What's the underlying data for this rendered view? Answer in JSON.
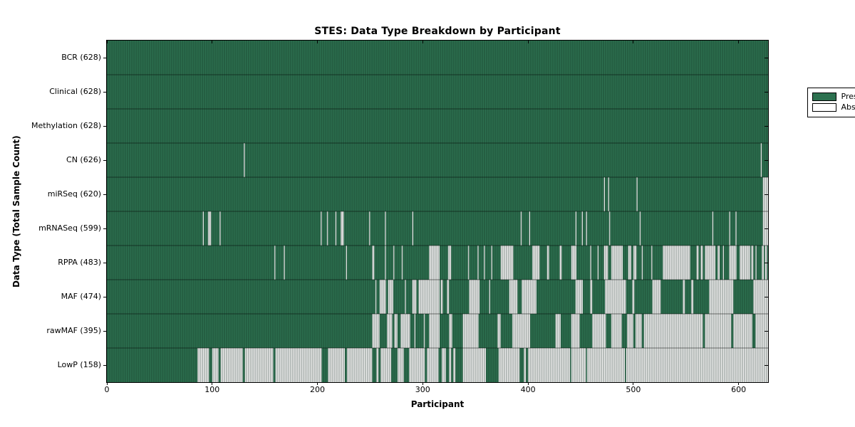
{
  "title": "STES: Data Type Breakdown by Participant",
  "axes": {
    "x_label": "Participant",
    "y_label": "Data Type (Total Sample Count)",
    "x_ticks": [
      0,
      100,
      200,
      300,
      400,
      500,
      600
    ],
    "x_min": 0,
    "x_max": 628
  },
  "legend": {
    "present_label": "Present",
    "absent_label": "Absent"
  },
  "colors": {
    "present": "#2d7150",
    "absent": "#ececec",
    "stripe": "#0a2216",
    "legend_present": "#2d7150",
    "legend_absent": "#ffffff",
    "border": "#000000"
  },
  "chart_data": {
    "type": "heatmap",
    "title": "STES: Data Type Breakdown by Participant",
    "xlabel": "Participant",
    "ylabel": "Data Type (Total Sample Count)",
    "xlim": [
      0,
      628
    ],
    "x_ticks": [
      0,
      100,
      200,
      300,
      400,
      500,
      600
    ],
    "legend_entries": [
      "Present",
      "Absent"
    ],
    "legend_position": "upper right",
    "value_encoding": {
      "present": "green filled column",
      "absent": "white column"
    },
    "rows": [
      {
        "label": "BCR (628)",
        "name": "BCR",
        "total": 628,
        "absent_runs": []
      },
      {
        "label": "Clinical (628)",
        "name": "Clinical",
        "total": 628,
        "absent_runs": []
      },
      {
        "label": "Methylation (628)",
        "name": "Methylation",
        "total": 628,
        "absent_runs": []
      },
      {
        "label": "CN (626)",
        "name": "CN",
        "total": 626,
        "absent_runs": [
          [
            130,
            131
          ],
          [
            621,
            622
          ]
        ]
      },
      {
        "label": "miRSeq (620)",
        "name": "miRSeq",
        "total": 620,
        "absent_runs": [
          [
            472,
            473
          ],
          [
            476,
            477
          ],
          [
            503,
            504
          ],
          [
            623,
            628
          ]
        ]
      },
      {
        "label": "mRNASeq (599)",
        "name": "mRNASeq",
        "total": 599,
        "absent_runs": [
          [
            91,
            92
          ],
          [
            96,
            99
          ],
          [
            107,
            108
          ],
          [
            203,
            204
          ],
          [
            209,
            210
          ],
          [
            217,
            218
          ],
          [
            222,
            225
          ],
          [
            249,
            250
          ],
          [
            264,
            265
          ],
          [
            290,
            291
          ],
          [
            393,
            394
          ],
          [
            401,
            402
          ],
          [
            445,
            446
          ],
          [
            451,
            452
          ],
          [
            455,
            456
          ],
          [
            477,
            478
          ],
          [
            506,
            507
          ],
          [
            575,
            576
          ],
          [
            591,
            592
          ],
          [
            597,
            598
          ],
          [
            623,
            628
          ]
        ]
      },
      {
        "label": "RPPA (483)",
        "name": "RPPA",
        "total": 483,
        "absent_runs": [
          [
            159,
            160
          ],
          [
            168,
            169
          ],
          [
            227,
            228
          ],
          [
            252,
            254
          ],
          [
            264,
            265
          ],
          [
            272,
            273
          ],
          [
            280,
            281
          ],
          [
            306,
            316
          ],
          [
            324,
            327
          ],
          [
            343,
            344
          ],
          [
            352,
            353
          ],
          [
            358,
            359
          ],
          [
            365,
            366
          ],
          [
            374,
            386
          ],
          [
            404,
            411
          ],
          [
            418,
            420
          ],
          [
            430,
            432
          ],
          [
            441,
            446
          ],
          [
            459,
            460
          ],
          [
            466,
            467
          ],
          [
            472,
            476
          ],
          [
            479,
            490
          ],
          [
            495,
            498
          ],
          [
            500,
            503
          ],
          [
            508,
            509
          ],
          [
            517,
            518
          ],
          [
            528,
            554
          ],
          [
            560,
            562
          ],
          [
            564,
            566
          ],
          [
            568,
            578
          ],
          [
            580,
            582
          ],
          [
            585,
            586
          ],
          [
            591,
            598
          ],
          [
            601,
            611
          ],
          [
            612,
            614
          ],
          [
            616,
            617
          ],
          [
            622,
            624
          ],
          [
            625,
            627
          ]
        ]
      },
      {
        "label": "MAF (474)",
        "name": "MAF",
        "total": 474,
        "absent_runs": [
          [
            255,
            256
          ],
          [
            259,
            265
          ],
          [
            267,
            272
          ],
          [
            283,
            284
          ],
          [
            290,
            294
          ],
          [
            296,
            316
          ],
          [
            317,
            319
          ],
          [
            323,
            325
          ],
          [
            344,
            354
          ],
          [
            363,
            364
          ],
          [
            382,
            390
          ],
          [
            394,
            408
          ],
          [
            445,
            452
          ],
          [
            459,
            461
          ],
          [
            473,
            493
          ],
          [
            499,
            501
          ],
          [
            518,
            526
          ],
          [
            547,
            549
          ],
          [
            555,
            557
          ],
          [
            572,
            595
          ],
          [
            614,
            628
          ]
        ]
      },
      {
        "label": "rawMAF (395)",
        "name": "rawMAF",
        "total": 395,
        "absent_runs": [
          [
            252,
            259
          ],
          [
            266,
            271
          ],
          [
            273,
            276
          ],
          [
            279,
            288
          ],
          [
            292,
            293
          ],
          [
            301,
            302
          ],
          [
            306,
            316
          ],
          [
            325,
            328
          ],
          [
            338,
            353
          ],
          [
            371,
            374
          ],
          [
            385,
            402
          ],
          [
            426,
            431
          ],
          [
            441,
            449
          ],
          [
            461,
            474
          ],
          [
            479,
            489
          ],
          [
            494,
            500
          ],
          [
            502,
            508
          ],
          [
            510,
            566
          ],
          [
            568,
            593
          ],
          [
            595,
            613
          ],
          [
            616,
            628
          ]
        ]
      },
      {
        "label": "LowP (158)",
        "name": "LowP",
        "total": 158,
        "absent_runs": [
          [
            86,
            97
          ],
          [
            100,
            106
          ],
          [
            108,
            129
          ],
          [
            131,
            158
          ],
          [
            160,
            204
          ],
          [
            210,
            226
          ],
          [
            228,
            252
          ],
          [
            256,
            258
          ],
          [
            260,
            270
          ],
          [
            276,
            282
          ],
          [
            287,
            302
          ],
          [
            304,
            315
          ],
          [
            318,
            322
          ],
          [
            325,
            327
          ],
          [
            329,
            331
          ],
          [
            338,
            360
          ],
          [
            372,
            392
          ],
          [
            396,
            398
          ],
          [
            400,
            440
          ],
          [
            441,
            455
          ],
          [
            456,
            492
          ],
          [
            493,
            628
          ]
        ]
      }
    ]
  }
}
